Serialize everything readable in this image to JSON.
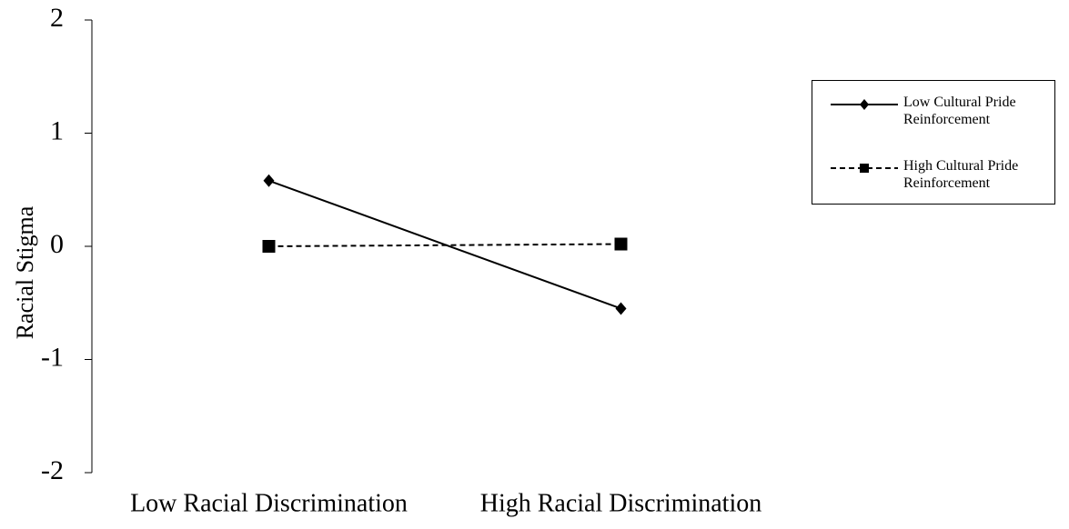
{
  "chart_data": {
    "type": "line",
    "y_label": "Racial Stigma",
    "categories": [
      "Low Racial Discrimination",
      "High Racial Discrimination"
    ],
    "series": [
      {
        "name": "Low Cultural Pride Reinforcement",
        "color": "#000000",
        "dash": "solid",
        "marker": "diamond",
        "values": [
          0.58,
          -0.55
        ]
      },
      {
        "name": "High Cultural Pride Reinforcement",
        "color": "#000000",
        "dash": "dashed",
        "marker": "square",
        "values": [
          0.0,
          0.02
        ]
      }
    ],
    "ylim": [
      -2,
      2
    ],
    "yticks": [
      -2,
      -1,
      0,
      1,
      2
    ],
    "grid": false,
    "legend": "upper right"
  }
}
